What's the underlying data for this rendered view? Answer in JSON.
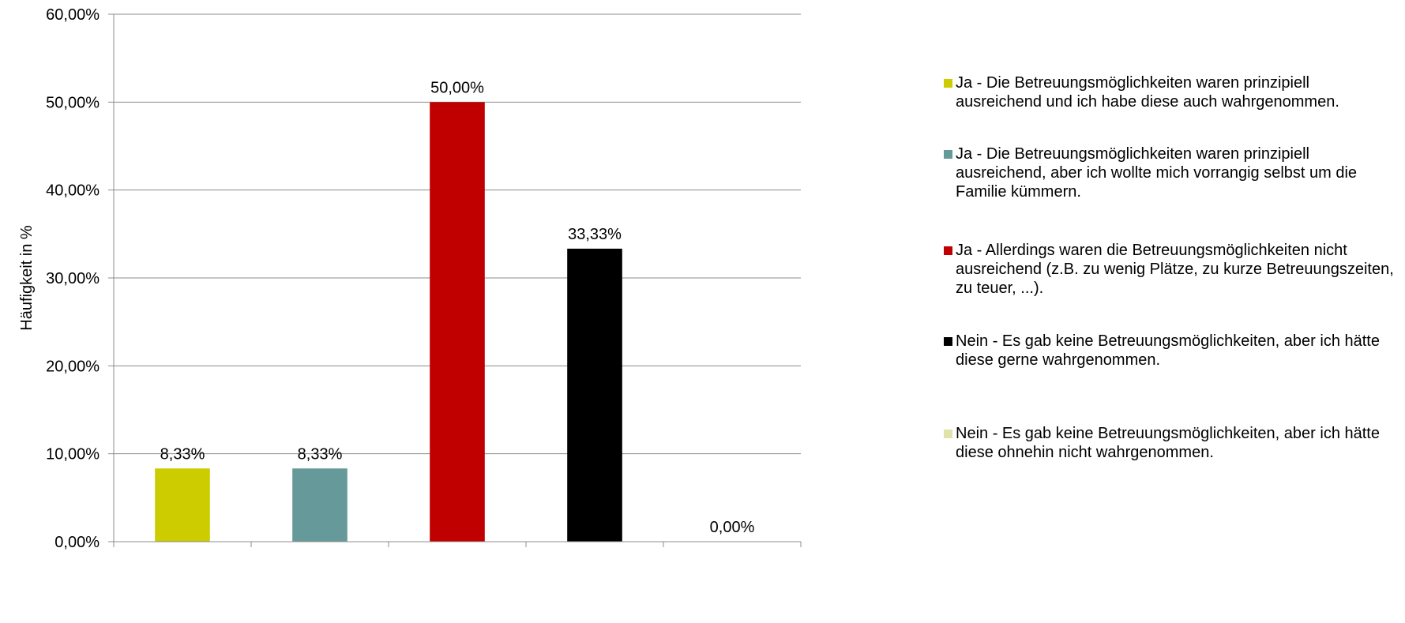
{
  "chart_data": {
    "type": "bar",
    "ylabel": "Häufigkeit in %",
    "ylim": [
      0,
      60
    ],
    "yticks": [
      "0,00%",
      "10,00%",
      "20,00%",
      "30,00%",
      "40,00%",
      "50,00%",
      "60,00%"
    ],
    "grid": true,
    "legend_position": "right",
    "series": [
      {
        "name": "Ja - Die Betreuungsmöglichkeiten waren prinzipiell ausreichend und ich habe diese auch wahrgenommen.",
        "value": 8.33,
        "label": "8,33%",
        "color": "#cccc00"
      },
      {
        "name": "Ja - Die Betreuungsmöglichkeiten waren prinzipiell ausreichend, aber ich wollte mich vorrangig selbst um die Familie kümmern.",
        "value": 8.33,
        "label": "8,33%",
        "color": "#669999"
      },
      {
        "name": "Ja - Allerdings waren die Betreuungsmöglichkeiten nicht ausreichend (z.B. zu wenig Plätze, zu kurze Betreuungszeiten, zu teuer, ...).",
        "value": 50.0,
        "label": "50,00%",
        "color": "#c00000"
      },
      {
        "name": "Nein - Es gab keine Betreuungsmöglichkeiten, aber ich hätte diese gerne wahrgenommen.",
        "value": 33.33,
        "label": "33,33%",
        "color": "#000000"
      },
      {
        "name": "Nein - Es gab keine Betreuungsmöglichkeiten, aber ich hätte diese ohnehin nicht wahrgenommen.",
        "value": 0.0,
        "label": "0,00%",
        "color": "#e1e1aa"
      }
    ]
  }
}
